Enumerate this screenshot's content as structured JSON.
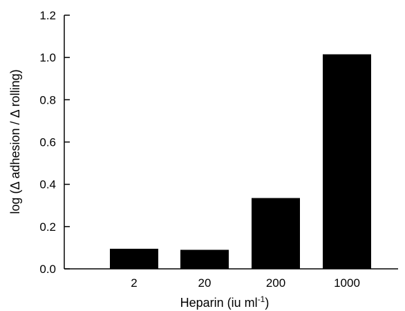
{
  "chart_data": {
    "type": "bar",
    "title": "",
    "categories": [
      "2",
      "20",
      "200",
      "1000"
    ],
    "values": [
      0.095,
      0.09,
      0.335,
      1.015
    ],
    "xlabel": "Heparin (iu ml-1)",
    "ylabel": "log (Δ adhesion / Δ rolling)",
    "ylim": [
      0,
      1.2
    ],
    "yticks": [
      "0.0",
      "0.2",
      "0.4",
      "0.6",
      "0.8",
      "1.0",
      "1.2"
    ],
    "grid": false,
    "legend": "none",
    "bar_color": "#000000"
  }
}
